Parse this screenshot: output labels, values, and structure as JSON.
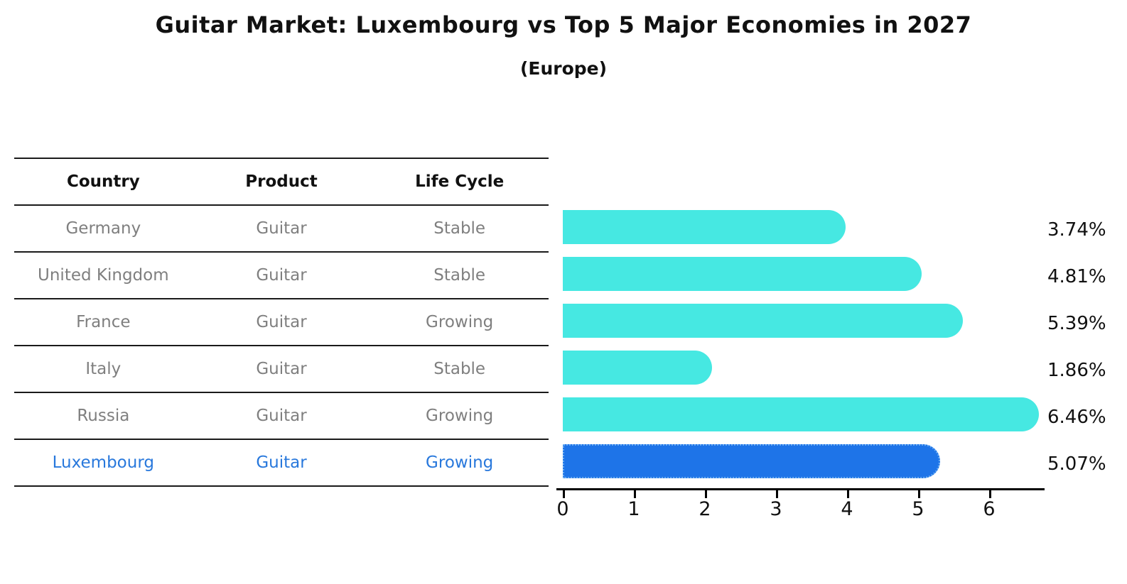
{
  "title": "Guitar Market: Luxembourg vs Top 5 Major Economies in 2027",
  "subtitle": "(Europe)",
  "colors": {
    "bar_default": "#46e8e2",
    "bar_highlight": "#1e74e8",
    "highlight_text": "#2878dc",
    "table_text": "#7f7f7f",
    "header_text": "#111111",
    "axis": "#000000"
  },
  "table": {
    "columns": [
      "Country",
      "Product",
      "Life Cycle"
    ],
    "rows": [
      {
        "country": "Germany",
        "product": "Guitar",
        "life_cycle": "Stable",
        "highlight": false
      },
      {
        "country": "United Kingdom",
        "product": "Guitar",
        "life_cycle": "Stable",
        "highlight": false
      },
      {
        "country": "France",
        "product": "Guitar",
        "life_cycle": "Growing",
        "highlight": false
      },
      {
        "country": "Italy",
        "product": "Guitar",
        "life_cycle": "Stable",
        "highlight": false
      },
      {
        "country": "Russia",
        "product": "Guitar",
        "life_cycle": "Growing",
        "highlight": false
      },
      {
        "country": "Luxembourg",
        "product": "Guitar",
        "life_cycle": "Growing",
        "highlight": true
      }
    ]
  },
  "chart_data": {
    "type": "bar",
    "orientation": "horizontal",
    "title": "Guitar Market: Luxembourg vs Top 5 Major Economies in 2027 (Europe)",
    "categories": [
      "Germany",
      "United Kingdom",
      "France",
      "Italy",
      "Russia",
      "Luxembourg"
    ],
    "values": [
      3.74,
      4.81,
      5.39,
      1.86,
      6.46,
      5.07
    ],
    "value_labels": [
      "3.74%",
      "4.81%",
      "5.39%",
      "1.86%",
      "6.46%",
      "5.07%"
    ],
    "highlight_index": 5,
    "x_ticks": [
      0,
      1,
      2,
      3,
      4,
      5,
      6
    ],
    "xlim": [
      0,
      6.87
    ],
    "xlabel": "",
    "ylabel": "",
    "grid": false,
    "legend": false
  }
}
